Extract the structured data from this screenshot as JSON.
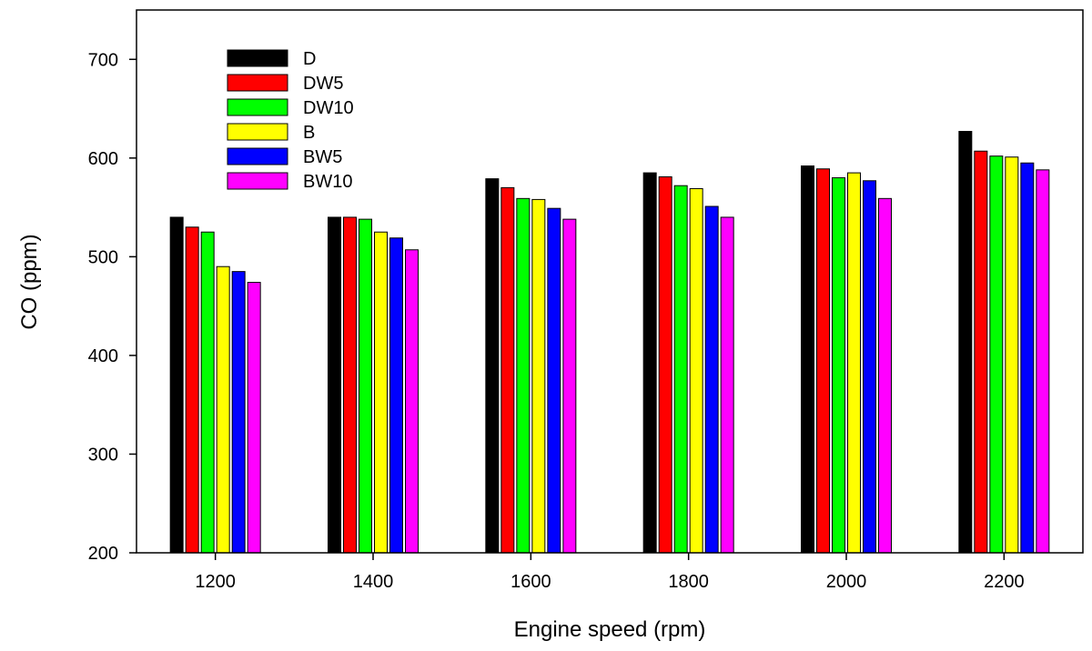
{
  "chart_data": {
    "type": "bar",
    "xlabel": "Engine speed (rpm)",
    "ylabel": "CO (ppm)",
    "ylim": [
      200,
      750
    ],
    "yticks": [
      200,
      300,
      400,
      500,
      600,
      700
    ],
    "categories": [
      "1200",
      "1400",
      "1600",
      "1800",
      "2000",
      "2200"
    ],
    "legend_position": "top-left",
    "grid": false,
    "series": [
      {
        "name": "D",
        "color": "#000000",
        "values": [
          540,
          540,
          579,
          585,
          592,
          627
        ]
      },
      {
        "name": "DW5",
        "color": "#ff0000",
        "values": [
          530,
          540,
          570,
          581,
          589,
          607
        ]
      },
      {
        "name": "DW10",
        "color": "#00ff00",
        "values": [
          525,
          538,
          559,
          572,
          580,
          602
        ]
      },
      {
        "name": "B",
        "color": "#ffff00",
        "values": [
          490,
          525,
          558,
          569,
          585,
          601
        ]
      },
      {
        "name": "BW5",
        "color": "#0000ff",
        "values": [
          485,
          519,
          549,
          551,
          577,
          595
        ]
      },
      {
        "name": "BW10",
        "color": "#ff00ff",
        "values": [
          474,
          507,
          538,
          540,
          559,
          588
        ]
      }
    ]
  }
}
